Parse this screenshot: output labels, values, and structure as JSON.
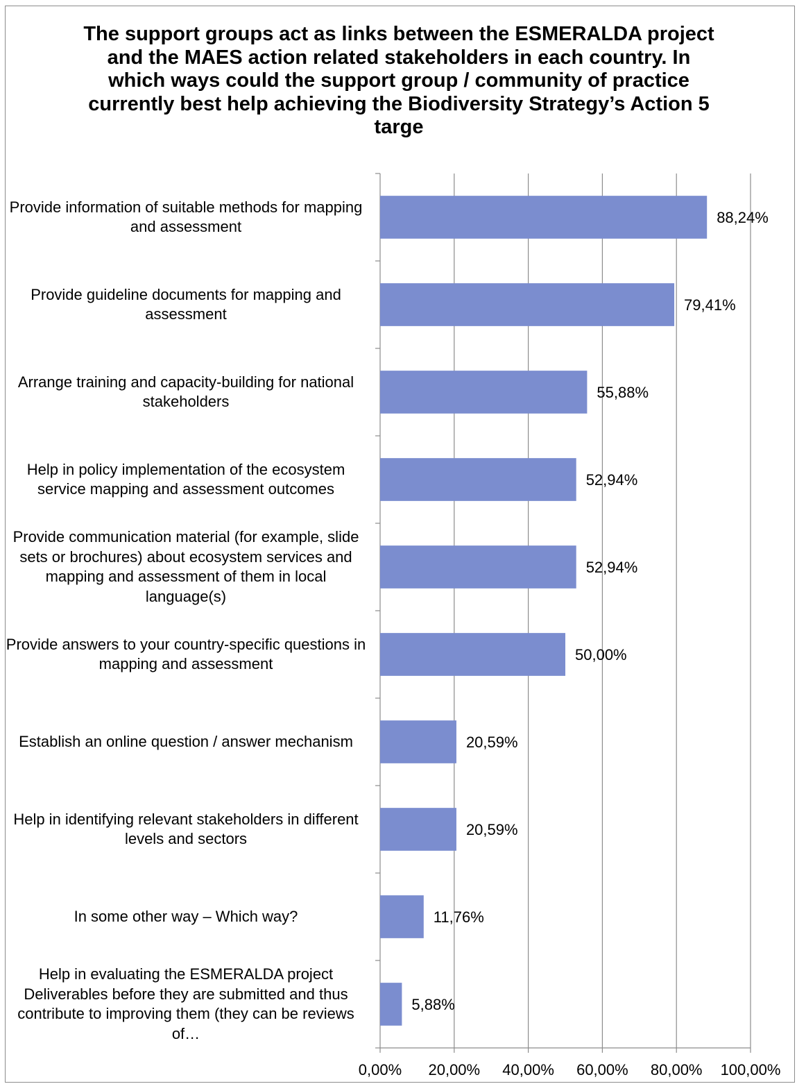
{
  "chart_data": {
    "type": "bar",
    "orientation": "horizontal",
    "title": "The support groups act as links between the ESMERALDA project and the MAES action related stakeholders in each country.  In which ways could the support group / community of practice currently best help achieving the Biodiversity Strategy’s Action 5 targe",
    "categories": [
      "Provide information of suitable methods for mapping and assessment",
      "Provide guideline documents for mapping and assessment",
      "Arrange training and capacity-building for national stakeholders",
      "Help in policy implementation of the ecosystem service mapping and assessment outcomes",
      "Provide communication material (for example, slide sets or brochures) about ecosystem services and mapping and assessment of them in local language(s)",
      "Provide answers to your country-specific questions in mapping and assessment",
      "Establish an online question / answer mechanism",
      "Help in identifying relevant stakeholders in different levels and sectors",
      "In some other way – Which way?",
      "Help in evaluating the ESMERALDA project Deliverables before they are submitted and thus contribute to improving them (they can be reviews of…"
    ],
    "values": [
      88.24,
      79.41,
      55.88,
      52.94,
      52.94,
      50.0,
      20.59,
      20.59,
      11.76,
      5.88
    ],
    "data_labels": [
      "88,24%",
      "79,41%",
      "55,88%",
      "52,94%",
      "52,94%",
      "50,00%",
      "20,59%",
      "20,59%",
      "11,76%",
      "5,88%"
    ],
    "xlim": [
      0,
      100
    ],
    "x_ticks": [
      0,
      20,
      40,
      60,
      80,
      100
    ],
    "x_tick_labels": [
      "0,00%",
      "20,00%",
      "40,00%",
      "60,00%",
      "80,00%",
      "100,00%"
    ],
    "xlabel": "",
    "ylabel": "",
    "grid": "vertical",
    "legend": "none",
    "bar_color": "#7b8dcf"
  }
}
